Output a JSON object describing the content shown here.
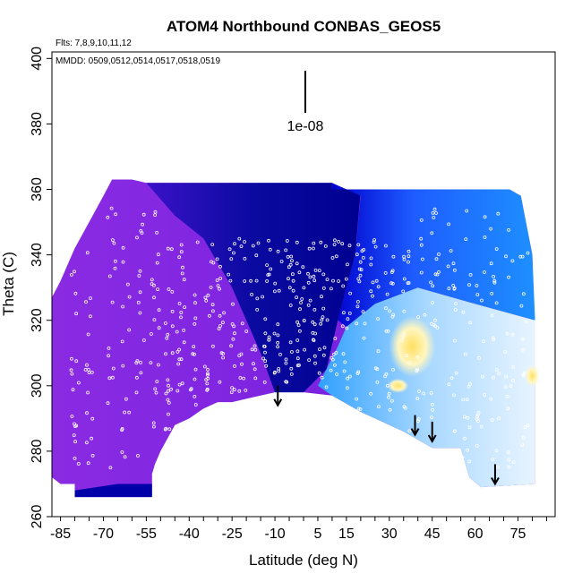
{
  "chart_data": {
    "type": "heatmap",
    "title": "ATOM4 Northbound CONBAS_GEOS5",
    "annotations": {
      "flights": "Flts: 7,8,9,10,11,12",
      "dates": "MMDD: 0509,0512,0514,0517,0518,0519",
      "scale_label": "1e-08"
    },
    "xlabel": "Latitude (deg N)",
    "ylabel": "Theta (C)",
    "xlim": [
      -88,
      88
    ],
    "ylim": [
      260,
      402
    ],
    "x_ticks": [
      -85,
      -70,
      -55,
      -40,
      -25,
      -10,
      5,
      15,
      30,
      45,
      60,
      75
    ],
    "y_ticks": [
      260,
      280,
      300,
      320,
      340,
      360,
      380,
      400
    ],
    "x_tick_labels": [
      "-85",
      "-70",
      "-55",
      "-40",
      "-25",
      "-10",
      "5",
      "15",
      "30",
      "45",
      "60",
      "75"
    ],
    "y_tick_labels": [
      "260",
      "280",
      "300",
      "320",
      "340",
      "360",
      "380",
      "400"
    ],
    "grid": false,
    "colormap": [
      "#00008b",
      "#0000cd",
      "#1e3cff",
      "#1e90ff",
      "#00bfff",
      "#87cefa",
      "#e0f0ff",
      "#ffffe0",
      "#ffd700"
    ],
    "background_color": "#8a2be2",
    "arrows_latitude": [
      -9,
      39,
      45,
      67
    ],
    "arrows_theta": [
      294,
      285,
      283,
      270
    ]
  }
}
